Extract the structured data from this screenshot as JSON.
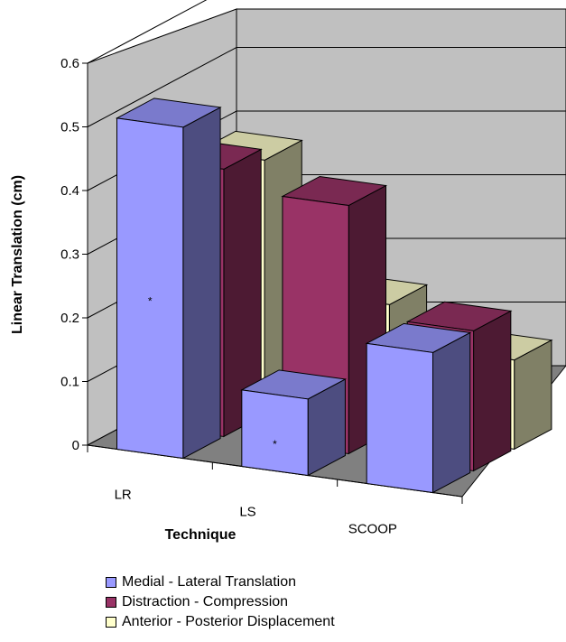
{
  "chart_data": {
    "type": "bar",
    "categories": [
      "LR",
      "LS",
      "SCOOP"
    ],
    "xlabel": "Technique",
    "ylabel": "Linear Translation (cm)",
    "ylim": [
      0,
      0.6
    ],
    "yticks": [
      "0",
      "0.1",
      "0.2",
      "0.3",
      "0.4",
      "0.5",
      "0.6"
    ],
    "grid": true,
    "legend_position": "bottom",
    "series": [
      {
        "name": "Medial - Lateral Translation",
        "color": "#9999ff",
        "values": [
          0.52,
          0.12,
          0.22
        ],
        "annotations": [
          "*",
          "*",
          ""
        ]
      },
      {
        "name": "Distraction - Compression",
        "color": "#993366",
        "values": [
          0.42,
          0.39,
          0.22
        ],
        "annotations": [
          "",
          "",
          ""
        ]
      },
      {
        "name": "Anterior - Posterior Displacement",
        "color": "#ffffcc",
        "values": [
          0.4,
          0.2,
          0.14
        ],
        "annotations": [
          "",
          "",
          ""
        ]
      }
    ]
  }
}
